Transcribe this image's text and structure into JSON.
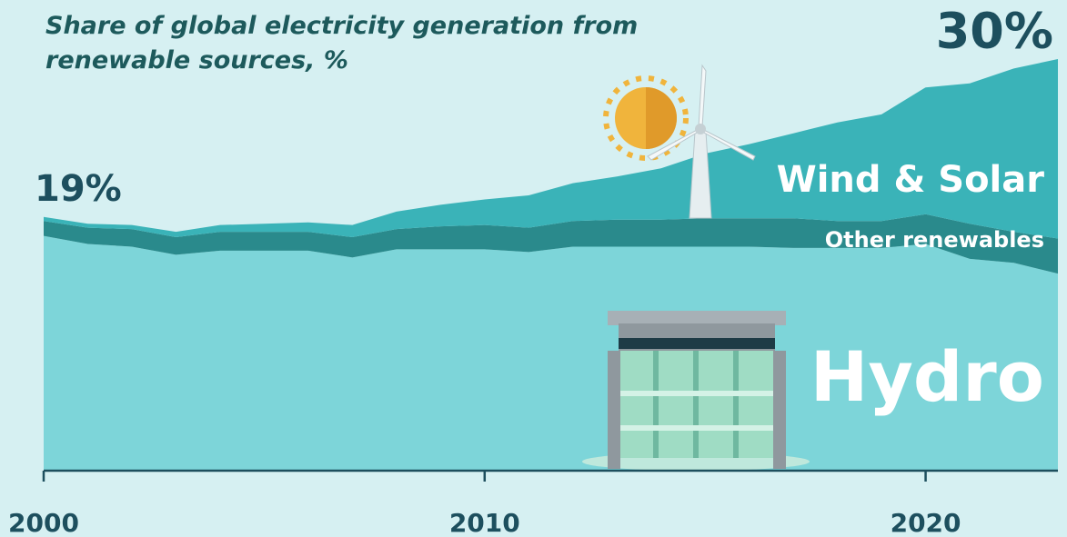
{
  "chart_data": {
    "type": "stacked-area",
    "title": "Share of global electricity generation from renewable sources, %",
    "x": [
      2000,
      2001,
      2002,
      2003,
      2004,
      2005,
      2006,
      2007,
      2008,
      2009,
      2010,
      2011,
      2012,
      2013,
      2014,
      2015,
      2016,
      2017,
      2018,
      2019,
      2020,
      2021,
      2022,
      2023
    ],
    "series": [
      {
        "name": "Hydro",
        "color": "#7dd5d9",
        "values": [
          17.4,
          16.8,
          16.6,
          16.0,
          16.3,
          16.3,
          16.3,
          15.8,
          16.4,
          16.4,
          16.4,
          16.2,
          16.6,
          16.6,
          16.6,
          16.6,
          16.6,
          16.5,
          16.5,
          16.5,
          16.8,
          15.7,
          15.4,
          14.6
        ]
      },
      {
        "name": "Other renewables",
        "color": "#2a8a8c",
        "values": [
          1.1,
          1.2,
          1.3,
          1.3,
          1.4,
          1.4,
          1.4,
          1.5,
          1.5,
          1.7,
          1.8,
          1.8,
          1.9,
          2.0,
          2.0,
          2.1,
          2.1,
          2.2,
          2.0,
          2.0,
          2.2,
          2.6,
          2.3,
          2.6
        ]
      },
      {
        "name": "Wind & Solar",
        "color": "#3ab3b8",
        "values": [
          0.3,
          0.3,
          0.3,
          0.4,
          0.5,
          0.6,
          0.7,
          0.9,
          1.3,
          1.6,
          1.9,
          2.4,
          2.8,
          3.2,
          3.8,
          4.8,
          5.5,
          6.3,
          7.3,
          7.9,
          9.4,
          10.4,
          12.1,
          13.3
        ]
      }
    ],
    "annotations": [
      "19%",
      "30%"
    ],
    "xlim": [
      2000,
      2023
    ],
    "xticks": [
      2000,
      2010,
      2020
    ],
    "ylim": [
      0,
      30.5
    ]
  }
}
